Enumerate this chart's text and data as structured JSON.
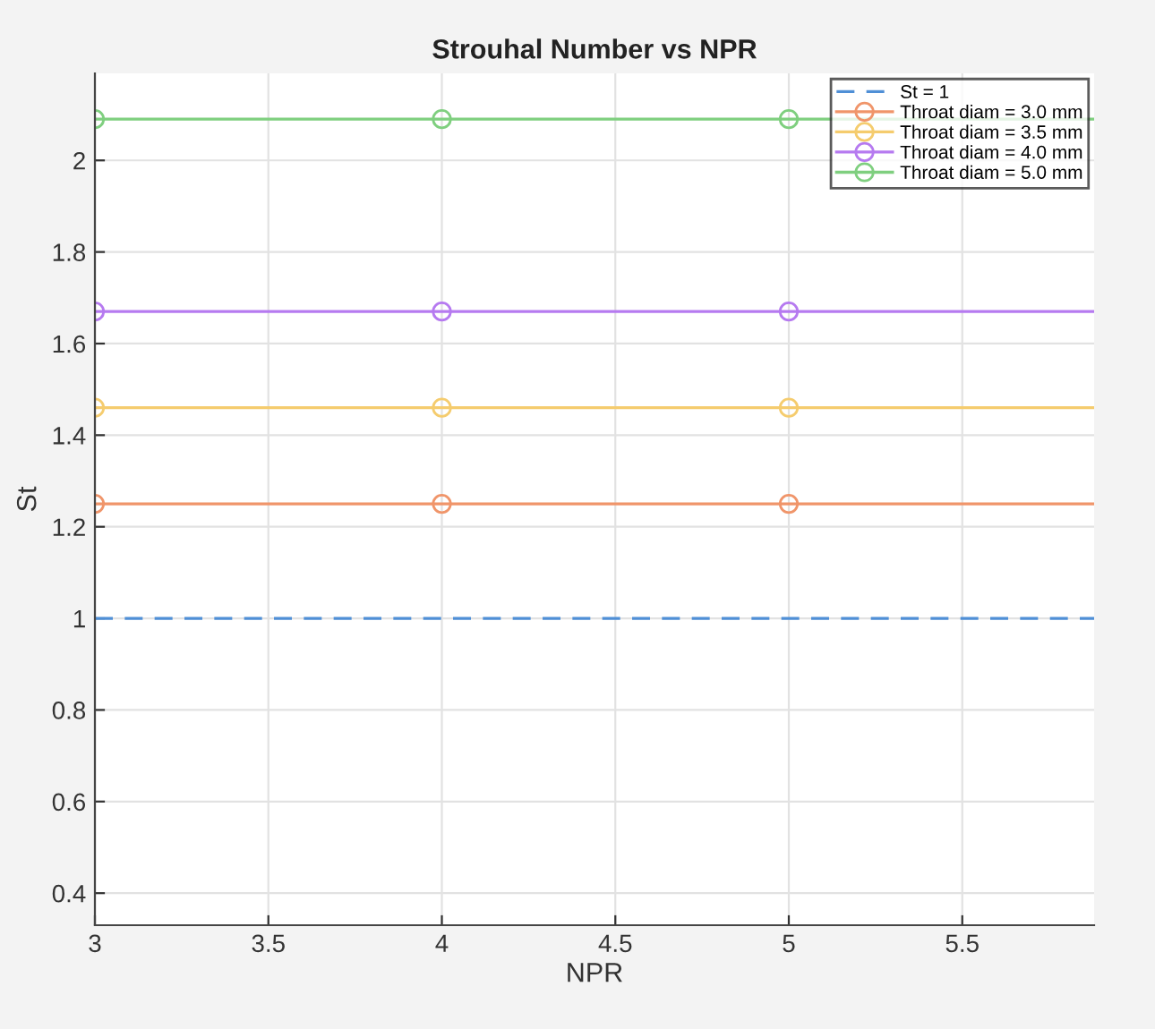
{
  "chart_data": {
    "type": "line",
    "title": "Strouhal Number vs NPR",
    "xlabel": "NPR",
    "ylabel": "St",
    "series": [
      {
        "name": "St = 1",
        "color": "#4f8fd6",
        "x": [
          3,
          5.88
        ],
        "values": [
          1,
          1
        ],
        "line_style": "dashed",
        "marker": "none"
      },
      {
        "name": "Throat diam = 3.0 mm",
        "color": "#f0956a",
        "x": [
          3,
          4,
          5,
          5.88
        ],
        "values": [
          1.25,
          1.25,
          1.25,
          1.25
        ],
        "marker": "circle"
      },
      {
        "name": "Throat diam = 3.5 mm",
        "color": "#f5cc6e",
        "x": [
          3,
          4,
          5,
          5.88
        ],
        "values": [
          1.46,
          1.46,
          1.46,
          1.46
        ],
        "marker": "circle"
      },
      {
        "name": "Throat diam = 4.0 mm",
        "color": "#b67af0",
        "x": [
          3,
          4,
          5,
          5.88
        ],
        "values": [
          1.67,
          1.67,
          1.67,
          1.67
        ],
        "marker": "circle"
      },
      {
        "name": "Throat diam = 5.0 mm",
        "color": "#7fcf7f",
        "x": [
          3,
          4,
          5,
          5.88
        ],
        "values": [
          2.09,
          2.09,
          2.09,
          2.09
        ],
        "marker": "circle"
      }
    ],
    "xlim": [
      3,
      5.88
    ],
    "xticks": [
      3,
      3.5,
      4,
      4.5,
      5,
      5.5
    ],
    "ylim": [
      0.33,
      2.19
    ],
    "yticks": [
      0.4,
      0.6,
      0.8,
      1,
      1.2,
      1.4,
      1.6,
      1.8,
      2
    ],
    "grid": true,
    "legend": "top right"
  }
}
